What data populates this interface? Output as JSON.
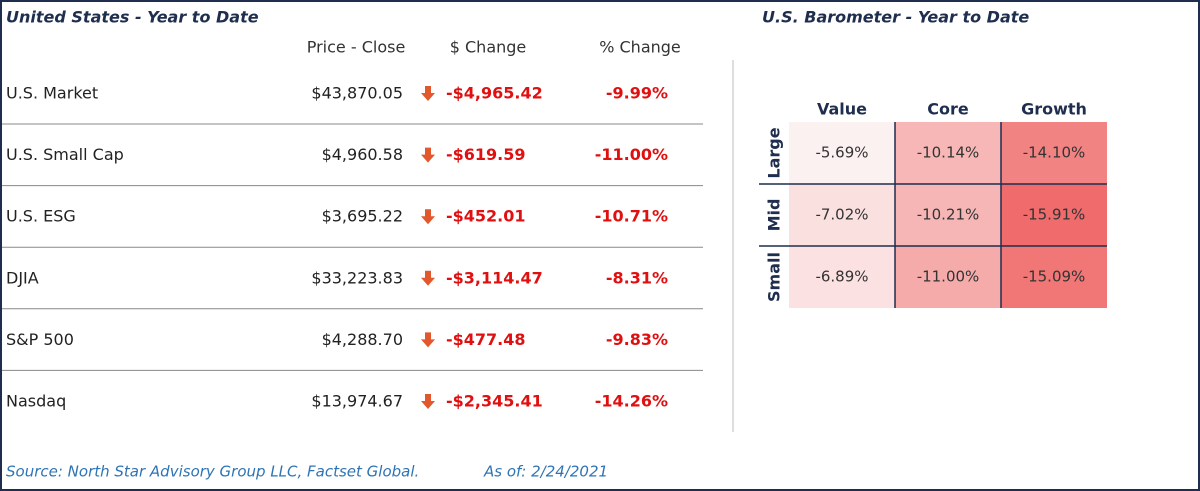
{
  "left_table": {
    "title": "United States - Year to Date",
    "columns": [
      "Price - Close",
      "$ Change",
      "% Change"
    ],
    "rows": [
      [
        "U.S. Market",
        "$43,870.05",
        "-$4,965.42",
        "-9.99%"
      ],
      [
        "U.S. Small Cap",
        "$4,960.58",
        "-$619.59",
        "-11.00%"
      ],
      [
        "U.S. ESG",
        "$3,695.22",
        "-$452.01",
        "-10.71%"
      ],
      [
        "DJIA",
        "$33,223.83",
        "-$3,114.47",
        "-8.31%"
      ],
      [
        "S&P 500",
        "$4,288.70",
        "-$477.48",
        "-9.83%"
      ],
      [
        "Nasdaq",
        "$13,974.67",
        "-$2,345.41",
        "-14.26%"
      ]
    ]
  },
  "barometer": {
    "title": "U.S. Barometer - Year to Date",
    "columns": [
      "Value",
      "Core",
      "Growth"
    ],
    "rows": [
      "Large",
      "Mid",
      "Small"
    ],
    "cells": [
      [
        "-5.69%",
        "-10.14%",
        "-14.10%"
      ],
      [
        "-7.02%",
        "-10.21%",
        "-15.91%"
      ],
      [
        "-6.89%",
        "-11.00%",
        "-15.09%"
      ]
    ]
  },
  "footer": {
    "source": "Source: North Star Advisory Group LLC, Factset Global.",
    "as_of": "As of: 2/24/2021"
  }
}
